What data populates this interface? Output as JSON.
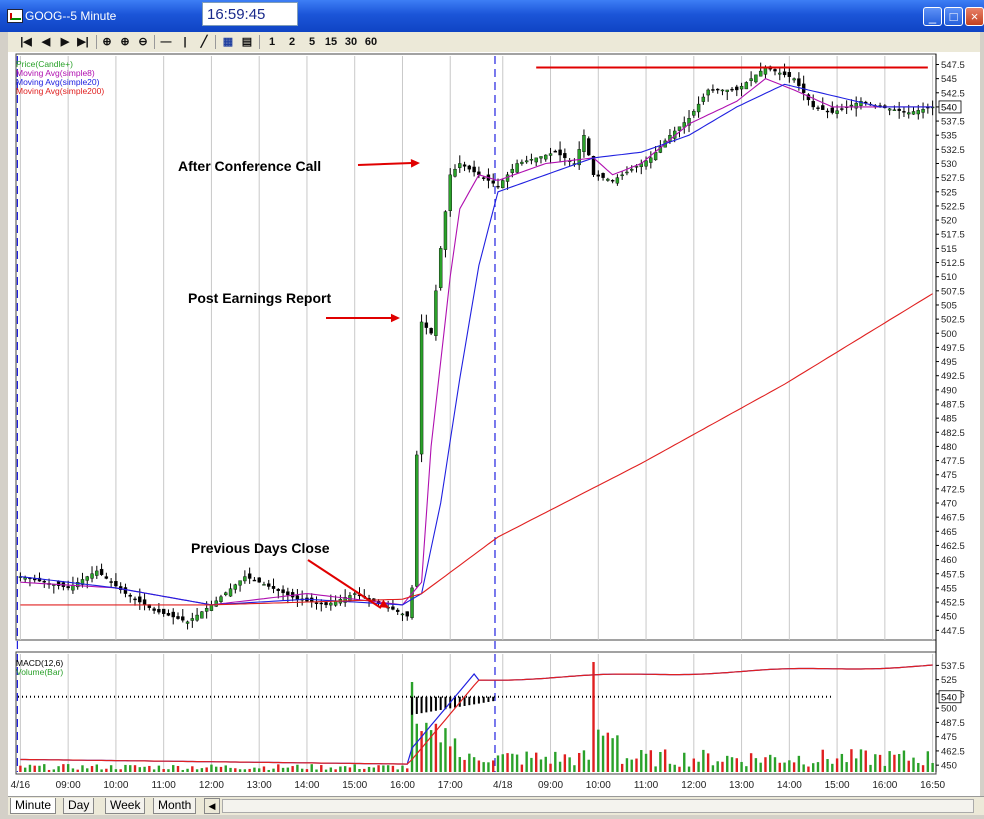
{
  "window": {
    "title": "GOOG--5 Minute",
    "clock": "16:59:45",
    "controls": {
      "minimize": "_",
      "maximize": "□",
      "close": "×"
    }
  },
  "toolbar": {
    "buttons": [
      {
        "label": "|◀",
        "icon": "first-icon"
      },
      {
        "label": "◀",
        "icon": "back-icon"
      },
      {
        "label": "▶",
        "icon": "forward-icon"
      },
      {
        "label": "▶|",
        "icon": "last-icon"
      },
      {
        "label": "⊕",
        "icon": "zoom-icon"
      },
      {
        "label": "⊕",
        "icon": "zoom-in-icon"
      },
      {
        "label": "⊖",
        "icon": "zoom-out-icon"
      },
      {
        "label": "—",
        "icon": "horizontal-line-icon"
      },
      {
        "label": "|",
        "icon": "vertical-line-icon"
      },
      {
        "label": "╱",
        "icon": "trendline-icon"
      },
      {
        "label": "▦",
        "icon": "book-icon"
      },
      {
        "label": "▤",
        "icon": "properties-icon"
      },
      {
        "label": "1",
        "icon": "interval-1-icon"
      },
      {
        "label": "2",
        "icon": "interval-2-icon"
      },
      {
        "label": "5",
        "icon": "interval-5-icon"
      },
      {
        "label": "15",
        "icon": "interval-15-icon"
      },
      {
        "label": "30",
        "icon": "interval-30-icon"
      },
      {
        "label": "60",
        "icon": "interval-60-icon"
      }
    ]
  },
  "tabs": [
    "Minute",
    "Day",
    "Week",
    "Month"
  ],
  "colors": {
    "price": "#2aa12a",
    "sma8": "#b010b0",
    "sma20": "#2020e0",
    "sma200": "#e02020",
    "annotation": "#e00000",
    "macd": "#2020e0",
    "signal": "#e02020"
  },
  "annotations": [
    {
      "text": "After Conference Call"
    },
    {
      "text": "Post Earnings Report"
    },
    {
      "text": "Previous Days Close"
    }
  ],
  "chart_data": [
    {
      "type": "line",
      "panel": "price",
      "legend": [
        "Price(Candle+)",
        "Moving Avg(simple8)",
        "Moving Avg(simple20)",
        "Moving Avg(simple200)"
      ],
      "y_ticks": [
        "547.5",
        "545",
        "542.5",
        "540",
        "537.5",
        "535",
        "532.5",
        "530",
        "527.5",
        "525",
        "522.5",
        "520",
        "517.5",
        "515",
        "512.5",
        "510",
        "507.5",
        "505",
        "502.5",
        "500",
        "497.5",
        "495",
        "492.5",
        "490",
        "487.5",
        "485",
        "482.5",
        "480",
        "477.5",
        "475",
        "472.5",
        "470",
        "467.5",
        "465",
        "462.5",
        "460",
        "457.5",
        "455",
        "452.5",
        "450",
        "447.5"
      ],
      "ylim": [
        446.5,
        549
      ],
      "last_price_label": "540",
      "x_labels": [
        "4/16",
        "09:00",
        "10:00",
        "11:00",
        "12:00",
        "13:00",
        "14:00",
        "15:00",
        "16:00",
        "17:00",
        "4/18",
        "09:00",
        "10:00",
        "11:00",
        "12:00",
        "13:00",
        "14:00",
        "15:00",
        "16:00",
        "16:50"
      ],
      "bars": 192,
      "day_boundaries": [
        0,
        100
      ],
      "resistance_level": 547.5,
      "series": [
        {
          "name": "Price(Candle+)",
          "anchors": [
            [
              0,
              457
            ],
            [
              10,
              455
            ],
            [
              16,
              458
            ],
            [
              22,
              454
            ],
            [
              28,
              451
            ],
            [
              35,
              449
            ],
            [
              40,
              452
            ],
            [
              47,
              457
            ],
            [
              50,
              456
            ],
            [
              58,
              453
            ],
            [
              64,
              452
            ],
            [
              70,
              454
            ],
            [
              76,
              452
            ],
            [
              81,
              450
            ],
            [
              82,
              455
            ],
            [
              84,
              502
            ],
            [
              86,
              500
            ],
            [
              88,
              515
            ],
            [
              90,
              528
            ],
            [
              92,
              530
            ],
            [
              96,
              528
            ],
            [
              100,
              526
            ],
            [
              104,
              530
            ],
            [
              108,
              531
            ],
            [
              112,
              532
            ],
            [
              116,
              530
            ],
            [
              118,
              535
            ],
            [
              120,
              528
            ],
            [
              124,
              527
            ],
            [
              128,
              529
            ],
            [
              132,
              531
            ],
            [
              136,
              535
            ],
            [
              140,
              538
            ],
            [
              144,
              543
            ],
            [
              150,
              543
            ],
            [
              156,
              547
            ],
            [
              162,
              545
            ],
            [
              166,
              540
            ],
            [
              170,
              539
            ],
            [
              176,
              541
            ],
            [
              180,
              540
            ],
            [
              186,
              539
            ],
            [
              191,
              540
            ]
          ]
        },
        {
          "name": "Moving Avg(simple8)",
          "anchors": [
            [
              0,
              456
            ],
            [
              20,
              455
            ],
            [
              40,
              452
            ],
            [
              60,
              454
            ],
            [
              80,
              452
            ],
            [
              84,
              456
            ],
            [
              86,
              480
            ],
            [
              88,
              495
            ],
            [
              90,
              510
            ],
            [
              92,
              522
            ],
            [
              96,
              528
            ],
            [
              100,
              527
            ],
            [
              110,
              530
            ],
            [
              120,
              531
            ],
            [
              124,
              528
            ],
            [
              130,
              530
            ],
            [
              140,
              537
            ],
            [
              150,
              541
            ],
            [
              156,
              545
            ],
            [
              162,
              543
            ],
            [
              170,
              540
            ],
            [
              180,
              540
            ],
            [
              191,
              540
            ]
          ]
        },
        {
          "name": "Moving Avg(simple20)",
          "anchors": [
            [
              0,
              457
            ],
            [
              20,
              455
            ],
            [
              40,
              452
            ],
            [
              60,
              453
            ],
            [
              80,
              452
            ],
            [
              84,
              454
            ],
            [
              88,
              470
            ],
            [
              92,
              492
            ],
            [
              96,
              512
            ],
            [
              100,
              525
            ],
            [
              110,
              528
            ],
            [
              120,
              531
            ],
            [
              130,
              532
            ],
            [
              140,
              535
            ],
            [
              150,
              540
            ],
            [
              160,
              544
            ],
            [
              170,
              542
            ],
            [
              180,
              540
            ],
            [
              191,
              540
            ]
          ]
        },
        {
          "name": "Moving Avg(simple200)",
          "anchors": [
            [
              0,
              452
            ],
            [
              40,
              452
            ],
            [
              80,
              453
            ],
            [
              84,
              454
            ],
            [
              100,
              464
            ],
            [
              130,
              477
            ],
            [
              160,
              491
            ],
            [
              191,
              507
            ]
          ]
        }
      ]
    },
    {
      "type": "bar",
      "panel": "indicators",
      "legend": [
        "MACD(12,6)",
        "Volume(Bar)"
      ],
      "y_ticks": [
        "537.5",
        "525",
        "512.5",
        "500",
        "487.5",
        "475",
        "462.5",
        "450"
      ],
      "last_value_label": "540",
      "series": [
        {
          "name": "MACD(12,6)",
          "description": "macd line flat near bottom on 4/16, jumps at 16:00 to high level, flat thereafter"
        },
        {
          "name": "Volume(Bar)",
          "spike_bars": [
            82,
            120
          ]
        }
      ]
    }
  ]
}
